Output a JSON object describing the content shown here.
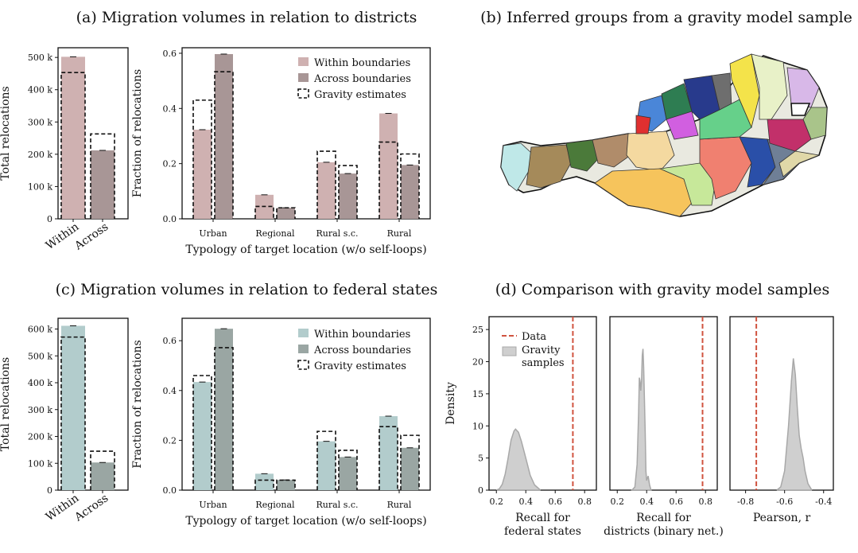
{
  "panels": {
    "a_title": "(a) Migration volumes in relation to districts",
    "b_title": "(b) Inferred groups from a gravity model sample",
    "c_title": "(c) Migration volumes in relation to federal states",
    "d_title": "(d) Comparison with gravity model samples"
  },
  "colors": {
    "within_a": "#cfb1b1",
    "across_a": "#a89696",
    "within_c": "#b2cccc",
    "across_c": "#9aa6a3",
    "data_line": "#d0533f",
    "kde_fill": "#cfcfcf",
    "kde_line": "#a8a8a8"
  },
  "legend": {
    "within": "Within boundaries",
    "across": "Across boundaries",
    "gravity": "Gravity estimates",
    "d_data": "Data",
    "d_gravity_1": "Gravity",
    "d_gravity_2": "samples"
  },
  "chart_data": [
    {
      "id": "a_totals",
      "type": "bar",
      "ylabel": "Total relocations",
      "categories": [
        "Within",
        "Across"
      ],
      "values": [
        502000,
        212000
      ],
      "gravity": [
        453000,
        263000
      ],
      "ylim": [
        0,
        530000
      ],
      "yticks": [
        0,
        100000,
        200000,
        300000,
        400000,
        500000
      ],
      "ytick_labels": [
        "0",
        "100 k",
        "200 k",
        "300 k",
        "400 k",
        "500 k"
      ]
    },
    {
      "id": "a_fractions",
      "type": "bar",
      "ylabel": "Fraction of relocations",
      "xlabel": "Typology of target location (w/o self-loops)",
      "categories": [
        "Urban",
        "Regional",
        "Rural s.c.",
        "Rural"
      ],
      "series": [
        {
          "name": "Within boundaries",
          "values": [
            0.323,
            0.087,
            0.205,
            0.382
          ],
          "gravity": [
            0.43,
            0.045,
            0.245,
            0.278
          ]
        },
        {
          "name": "Across boundaries",
          "values": [
            0.597,
            0.04,
            0.164,
            0.195
          ],
          "gravity": [
            0.533,
            0.04,
            0.193,
            0.235
          ]
        }
      ],
      "ylim": [
        0,
        0.62
      ],
      "yticks": [
        0,
        0.2,
        0.4,
        0.6
      ],
      "ytick_labels": [
        "0.0",
        "0.2",
        "0.4",
        "0.6"
      ]
    },
    {
      "id": "c_totals",
      "type": "bar",
      "ylabel": "Total relocations",
      "categories": [
        "Within",
        "Across"
      ],
      "values": [
        612000,
        103000
      ],
      "gravity": [
        570000,
        145000
      ],
      "ylim": [
        0,
        640000
      ],
      "yticks": [
        0,
        100000,
        200000,
        300000,
        400000,
        500000,
        600000
      ],
      "ytick_labels": [
        "0",
        "100 k",
        "200 k",
        "300 k",
        "400 k",
        "500 k",
        "600 k"
      ]
    },
    {
      "id": "c_fractions",
      "type": "bar",
      "ylabel": "Fraction of relocations",
      "xlabel": "Typology of target location (w/o self-loops)",
      "categories": [
        "Urban",
        "Regional",
        "Rural s.c.",
        "Rural"
      ],
      "series": [
        {
          "name": "Within boundaries",
          "values": [
            0.434,
            0.066,
            0.196,
            0.297
          ],
          "gravity": [
            0.46,
            0.04,
            0.236,
            0.255
          ]
        },
        {
          "name": "Across boundaries",
          "values": [
            0.648,
            0.041,
            0.133,
            0.17
          ],
          "gravity": [
            0.572,
            0.04,
            0.16,
            0.22
          ]
        }
      ],
      "ylim": [
        0,
        0.69
      ],
      "yticks": [
        0,
        0.2,
        0.4,
        0.6
      ],
      "ytick_labels": [
        "0.0",
        "0.2",
        "0.4",
        "0.6"
      ]
    },
    {
      "id": "d_federal",
      "type": "area",
      "ylabel": "Density",
      "xlabel_1": "Recall for",
      "xlabel_2": "federal states",
      "xlim": [
        0.15,
        0.88
      ],
      "xticks": [
        0.2,
        0.4,
        0.6,
        0.8
      ],
      "xtick_labels": [
        "0.2",
        "0.4",
        "0.6",
        "0.8"
      ],
      "ylim": [
        0,
        27
      ],
      "yticks": [
        0,
        5,
        10,
        15,
        20,
        25
      ],
      "ytick_labels": [
        "0",
        "5",
        "10",
        "15",
        "20",
        "25"
      ],
      "data_value": 0.72,
      "kde": [
        [
          0.2,
          0
        ],
        [
          0.22,
          0.2
        ],
        [
          0.24,
          0.9
        ],
        [
          0.26,
          2.5
        ],
        [
          0.28,
          5
        ],
        [
          0.3,
          7.8
        ],
        [
          0.32,
          9.2
        ],
        [
          0.33,
          9.5
        ],
        [
          0.35,
          9
        ],
        [
          0.37,
          7.6
        ],
        [
          0.4,
          5
        ],
        [
          0.43,
          2.3
        ],
        [
          0.46,
          0.8
        ],
        [
          0.5,
          0
        ]
      ]
    },
    {
      "id": "d_districts",
      "type": "area",
      "xlabel_1": "Recall for",
      "xlabel_2": "districts (binary net.)",
      "xlim": [
        0.15,
        0.88
      ],
      "xticks": [
        0.2,
        0.4,
        0.6,
        0.8
      ],
      "xtick_labels": [
        "0.2",
        "0.4",
        "0.6",
        "0.8"
      ],
      "ylim": [
        0,
        27
      ],
      "data_value": 0.78,
      "kde": [
        [
          0.3,
          0
        ],
        [
          0.32,
          0.5
        ],
        [
          0.335,
          4
        ],
        [
          0.345,
          12
        ],
        [
          0.35,
          17.5
        ],
        [
          0.355,
          17
        ],
        [
          0.36,
          15.5
        ],
        [
          0.365,
          17
        ],
        [
          0.37,
          21
        ],
        [
          0.375,
          22
        ],
        [
          0.38,
          19
        ],
        [
          0.39,
          9
        ],
        [
          0.395,
          3
        ],
        [
          0.4,
          1.5
        ],
        [
          0.41,
          2.2
        ],
        [
          0.42,
          0.8
        ],
        [
          0.43,
          0
        ]
      ]
    },
    {
      "id": "d_pearson",
      "type": "area",
      "xlabel_1": "Pearson, r",
      "xlim": [
        -0.88,
        -0.35
      ],
      "xticks": [
        -0.8,
        -0.6,
        -0.4
      ],
      "xtick_labels": [
        "-0.8",
        "-0.6",
        "-0.4"
      ],
      "ylim": [
        0,
        27
      ],
      "data_value": -0.745,
      "kde": [
        [
          -0.64,
          0
        ],
        [
          -0.62,
          0.5
        ],
        [
          -0.6,
          3
        ],
        [
          -0.58,
          10
        ],
        [
          -0.565,
          17
        ],
        [
          -0.555,
          20.5
        ],
        [
          -0.545,
          18
        ],
        [
          -0.535,
          13
        ],
        [
          -0.525,
          8.5
        ],
        [
          -0.515,
          6.5
        ],
        [
          -0.505,
          5
        ],
        [
          -0.495,
          3
        ],
        [
          -0.48,
          1
        ],
        [
          -0.46,
          0
        ]
      ]
    }
  ]
}
